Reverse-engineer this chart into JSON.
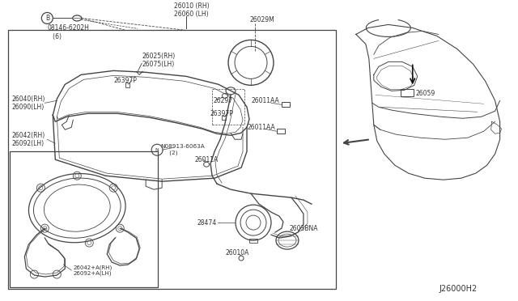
{
  "bg_color": "#ffffff",
  "line_color": "#444444",
  "text_color": "#333333",
  "title_code": "J26000H2",
  "labels": {
    "bolt": "08146-6202H\n   (6)",
    "26010": "26010 (RH)\n26060 (LH)",
    "26029M": "26029M",
    "26025": "26025(RH)\n26075(LH)",
    "26397P_left": "26397P",
    "26040": "26040(RH)\n26090(LH)",
    "26042": "26042(RH)\n26092(LH)",
    "26297": "26297",
    "26397P_right": "26397P",
    "26011AA_top": "26011AA",
    "26011AA_bot": "26011AA",
    "08913": "N08913-6063A\n     (2)",
    "26011A": "26011A",
    "28474": "28474",
    "26010A": "26010A",
    "2603BNA": "2603BNA",
    "26042A": "26042+A(RH)\n26092+A(LH)",
    "26059": "26059"
  }
}
